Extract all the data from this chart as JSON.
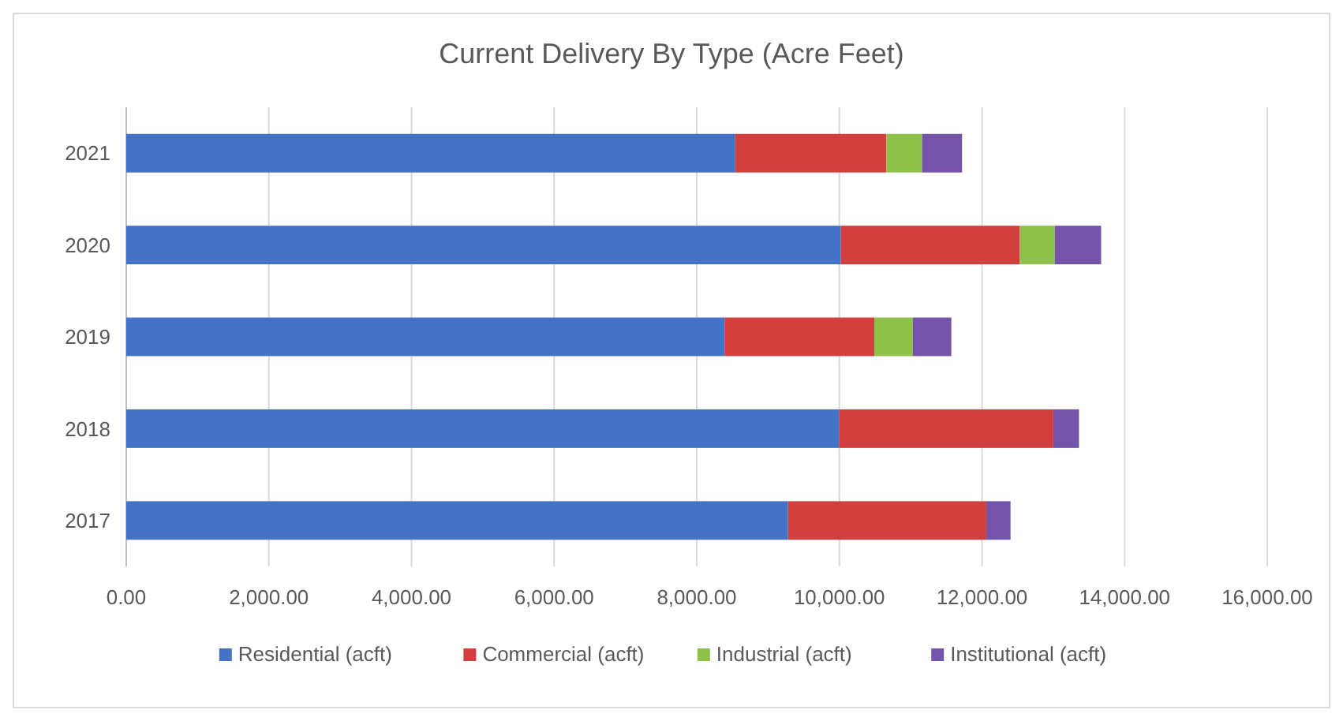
{
  "chart_data": {
    "type": "bar",
    "orientation": "horizontal",
    "stacked": true,
    "title": "Current Delivery By Type (Acre Feet)",
    "categories": [
      "2021",
      "2020",
      "2019",
      "2018",
      "2017"
    ],
    "series": [
      {
        "name": "Residential (acft)",
        "color": "#4472c4",
        "values": [
          8540,
          10020,
          8390,
          10000,
          9280
        ]
      },
      {
        "name": "Commercial (acft)",
        "color": "#d13f3f",
        "values": [
          2120,
          2510,
          2100,
          3000,
          2780
        ]
      },
      {
        "name": "Industrial (acft)",
        "color": "#8fc04a",
        "values": [
          500,
          490,
          540,
          0,
          0
        ]
      },
      {
        "name": "Institutional (acft)",
        "color": "#7454a8",
        "values": [
          560,
          650,
          540,
          360,
          340
        ]
      }
    ],
    "xlim": [
      0,
      16000
    ],
    "xticks": [
      {
        "value": 0,
        "label": "0.00"
      },
      {
        "value": 2000,
        "label": "2,000.00"
      },
      {
        "value": 4000,
        "label": "4,000.00"
      },
      {
        "value": 6000,
        "label": "6,000.00"
      },
      {
        "value": 8000,
        "label": "8,000.00"
      },
      {
        "value": 10000,
        "label": "10,000.00"
      },
      {
        "value": 12000,
        "label": "12,000.00"
      },
      {
        "value": 14000,
        "label": "14,000.00"
      },
      {
        "value": 16000,
        "label": "16,000.00"
      }
    ],
    "grid": "x",
    "legend": "bottom"
  }
}
